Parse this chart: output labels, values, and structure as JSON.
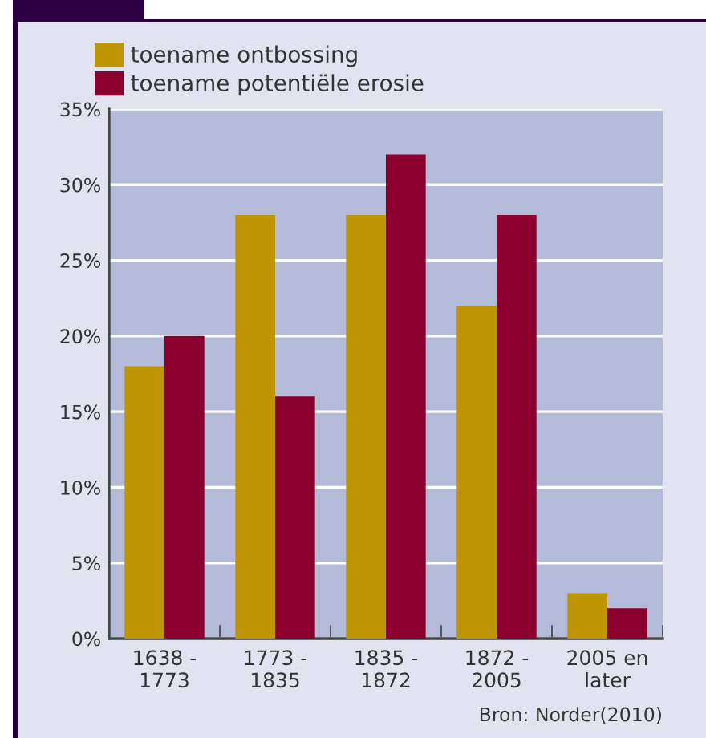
{
  "chart_data": {
    "type": "bar",
    "categories": [
      "1638 -\n1773",
      "1773 -\n1835",
      "1835 -\n1872",
      "1872 -\n2005",
      "2005 en\nlater"
    ],
    "series": [
      {
        "name": "toename ontbossing",
        "color": "#bf9504",
        "values": [
          18,
          28,
          28,
          22,
          3
        ]
      },
      {
        "name": "toename potentiële erosie",
        "color": "#8c0030",
        "values": [
          20,
          16,
          32,
          28,
          2
        ]
      }
    ],
    "ylim": [
      0,
      35
    ],
    "yticks": [
      {
        "value": 0,
        "label": "0%"
      },
      {
        "value": 5,
        "label": "5%"
      },
      {
        "value": 10,
        "label": "10%"
      },
      {
        "value": 15,
        "label": "15%"
      },
      {
        "value": 20,
        "label": "20%"
      },
      {
        "value": 25,
        "label": "25%"
      },
      {
        "value": 30,
        "label": "30%"
      },
      {
        "value": 35,
        "label": "35%"
      }
    ],
    "grid": "y",
    "legend": "top left",
    "annotations": [
      "Bron: Norder(2010)"
    ]
  }
}
